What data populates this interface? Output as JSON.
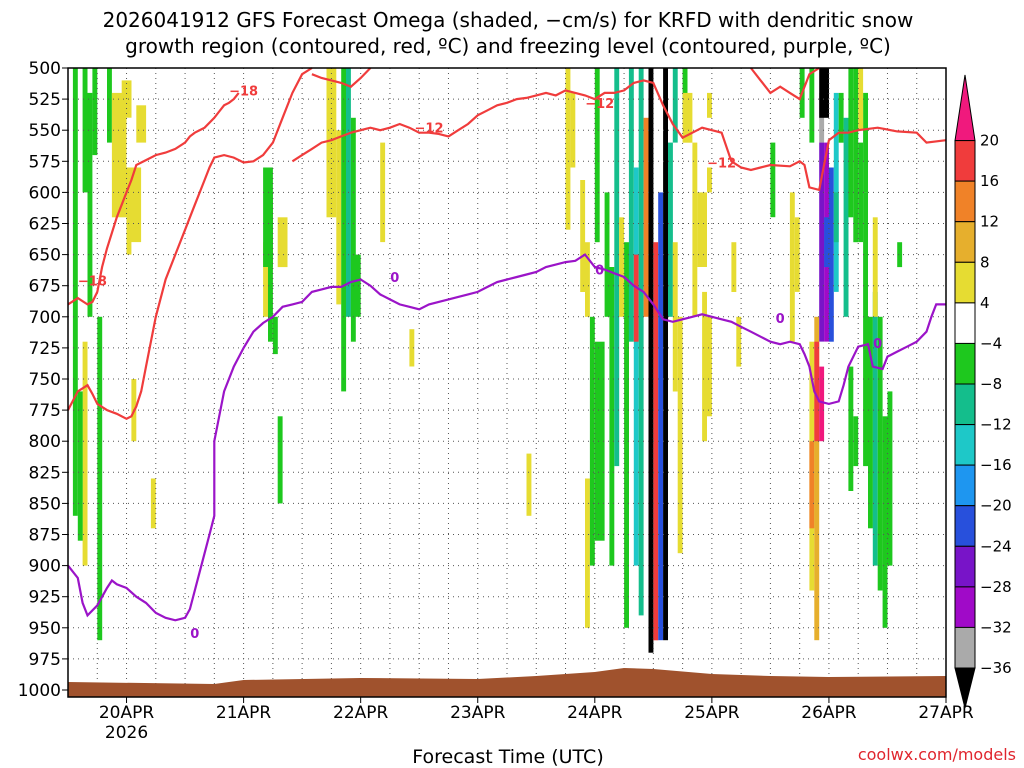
{
  "chart_data": {
    "type": "heatmap",
    "title_line1": "2026041912 GFS Forecast Omega (shaded, −cm/s) for KRFD with dendritic snow",
    "title_line2": "growth region (contoured, red, ºC) and freezing level (contoured, purple, ºC)",
    "xlabel": "Forecast Time (UTC)",
    "credit": "coolwx.com/models",
    "y_ticks": [
      500,
      525,
      550,
      575,
      600,
      625,
      650,
      675,
      700,
      725,
      750,
      775,
      800,
      825,
      850,
      875,
      900,
      925,
      950,
      975,
      1000
    ],
    "ylim": [
      1000,
      500
    ],
    "xlim": [
      0,
      180
    ],
    "x_ticks": [
      {
        "day": 12,
        "label": "20APR",
        "sublabel": "2026"
      },
      {
        "day": 36,
        "label": "21APR",
        "sublabel": ""
      },
      {
        "day": 60,
        "label": "22APR",
        "sublabel": ""
      },
      {
        "day": 84,
        "label": "23APR",
        "sublabel": ""
      },
      {
        "day": 108,
        "label": "24APR",
        "sublabel": ""
      },
      {
        "day": 132,
        "label": "25APR",
        "sublabel": ""
      },
      {
        "day": 156,
        "label": "26APR",
        "sublabel": ""
      },
      {
        "day": 180,
        "label": "27APR",
        "sublabel": ""
      }
    ],
    "colorbar": {
      "levels": [
        20,
        16,
        12,
        8,
        4,
        -4,
        -8,
        -12,
        -16,
        -20,
        -24,
        -28,
        -32,
        -36
      ],
      "colors": [
        "#f0197d",
        "#f03c3c",
        "#f08228",
        "#e6af2d",
        "#e6dc32",
        "#ffffff",
        "#1ec81e",
        "#14be8c",
        "#1ec8c8",
        "#1e96f0",
        "#2850dc",
        "#7814c8",
        "#a00ac8",
        "#aaaaaa",
        "#000000"
      ]
    },
    "contours": [
      {
        "name": "-18",
        "color": "#f03c3c",
        "label_at": [
          [
            5,
            675
          ],
          [
            36,
            522
          ]
        ],
        "points": [
          [
            0,
            690
          ],
          [
            2,
            685
          ],
          [
            4,
            690
          ],
          [
            5,
            688
          ],
          [
            6,
            680
          ],
          [
            7,
            660
          ],
          [
            8,
            645
          ],
          [
            10,
            620
          ],
          [
            12,
            600
          ],
          [
            13,
            590
          ],
          [
            14,
            578
          ],
          [
            16,
            574
          ],
          [
            18,
            570
          ],
          [
            20,
            568
          ],
          [
            22,
            565
          ],
          [
            24,
            560
          ],
          [
            25,
            555
          ],
          [
            26,
            552
          ],
          [
            28,
            548
          ],
          [
            30,
            540
          ],
          [
            31,
            535
          ],
          [
            32,
            530
          ],
          [
            33,
            528
          ],
          [
            34,
            525
          ],
          [
            35,
            520
          ]
        ]
      },
      {
        "name": "-18 lower",
        "color": "#f03c3c",
        "label_at": [],
        "points": [
          [
            0,
            775
          ],
          [
            2,
            760
          ],
          [
            4,
            755
          ],
          [
            5,
            762
          ],
          [
            6,
            770
          ],
          [
            8,
            775
          ],
          [
            10,
            778
          ],
          [
            12,
            782
          ],
          [
            13,
            780
          ],
          [
            14,
            772
          ],
          [
            15,
            760
          ],
          [
            16,
            740
          ],
          [
            18,
            700
          ],
          [
            20,
            670
          ],
          [
            22,
            650
          ],
          [
            24,
            630
          ],
          [
            26,
            610
          ],
          [
            28,
            590
          ],
          [
            29,
            580
          ],
          [
            30,
            572
          ],
          [
            32,
            570
          ],
          [
            34,
            572
          ],
          [
            36,
            576
          ],
          [
            38,
            575
          ],
          [
            40,
            570
          ],
          [
            42,
            560
          ],
          [
            44,
            540
          ],
          [
            46,
            520
          ],
          [
            48,
            505
          ],
          [
            50,
            500
          ]
        ]
      },
      {
        "name": "-12",
        "color": "#f03c3c",
        "label_at": [
          [
            74,
            552
          ],
          [
            109,
            532
          ],
          [
            134,
            580
          ]
        ],
        "points": [
          [
            50,
            505
          ],
          [
            52,
            508
          ],
          [
            54,
            510
          ],
          [
            56,
            512
          ],
          [
            58,
            515
          ],
          [
            60,
            508
          ],
          [
            62,
            500
          ]
        ]
      },
      {
        "name": "-12 b",
        "color": "#f03c3c",
        "label_at": [],
        "points": [
          [
            46,
            575
          ],
          [
            48,
            570
          ],
          [
            50,
            565
          ],
          [
            52,
            560
          ],
          [
            54,
            558
          ],
          [
            56,
            555
          ],
          [
            58,
            552
          ],
          [
            60,
            550
          ],
          [
            62,
            548
          ],
          [
            64,
            550
          ],
          [
            66,
            548
          ],
          [
            68,
            545
          ],
          [
            70,
            548
          ],
          [
            72,
            552
          ],
          [
            74,
            552
          ],
          [
            76,
            553
          ],
          [
            78,
            555
          ],
          [
            80,
            550
          ],
          [
            82,
            545
          ],
          [
            84,
            538
          ],
          [
            86,
            534
          ],
          [
            88,
            530
          ],
          [
            90,
            528
          ],
          [
            92,
            525
          ],
          [
            94,
            524
          ],
          [
            96,
            522
          ],
          [
            98,
            520
          ],
          [
            100,
            522
          ],
          [
            102,
            518
          ],
          [
            104,
            520
          ],
          [
            106,
            522
          ],
          [
            108,
            525
          ],
          [
            110,
            520
          ],
          [
            112,
            520
          ],
          [
            114,
            518
          ],
          [
            116,
            512
          ],
          [
            118,
            510
          ],
          [
            120,
            512
          ],
          [
            122,
            530
          ],
          [
            124,
            545
          ],
          [
            126,
            556
          ],
          [
            128,
            552
          ],
          [
            130,
            548
          ],
          [
            132,
            550
          ],
          [
            134,
            552
          ],
          [
            136,
            575
          ],
          [
            138,
            580
          ],
          [
            140,
            582
          ],
          [
            142,
            580
          ],
          [
            144,
            578
          ],
          [
            148,
            579
          ],
          [
            150,
            575
          ],
          [
            151,
            578
          ],
          [
            152,
            596
          ],
          [
            154,
            598
          ],
          [
            156,
            558
          ],
          [
            158,
            552
          ],
          [
            160,
            552
          ],
          [
            162,
            550
          ],
          [
            166,
            548
          ],
          [
            170,
            551
          ],
          [
            174,
            552
          ],
          [
            176,
            560
          ],
          [
            180,
            558
          ]
        ]
      },
      {
        "name": "-12 top",
        "color": "#f03c3c",
        "label_at": [],
        "points": [
          [
            140,
            500
          ],
          [
            142,
            510
          ],
          [
            144,
            520
          ],
          [
            146,
            515
          ],
          [
            148,
            520
          ],
          [
            150,
            525
          ],
          [
            152,
            505
          ],
          [
            154,
            500
          ]
        ]
      },
      {
        "name": "0",
        "color": "#9b14c8",
        "label_at": [
          [
            67,
            672
          ],
          [
            109,
            666
          ],
          [
            146,
            705
          ],
          [
            166,
            725
          ],
          [
            26,
            958
          ]
        ],
        "points": [
          [
            0,
            900
          ],
          [
            2,
            910
          ],
          [
            3,
            930
          ],
          [
            4,
            940
          ],
          [
            6,
            932
          ],
          [
            8,
            918
          ],
          [
            9,
            912
          ],
          [
            10,
            915
          ],
          [
            12,
            918
          ],
          [
            14,
            925
          ],
          [
            16,
            930
          ],
          [
            18,
            938
          ],
          [
            20,
            942
          ],
          [
            22,
            944
          ],
          [
            24,
            942
          ],
          [
            25,
            935
          ],
          [
            26,
            920
          ],
          [
            27,
            905
          ],
          [
            28,
            890
          ],
          [
            29,
            875
          ],
          [
            30,
            860
          ],
          [
            30,
            840
          ],
          [
            30,
            820
          ],
          [
            30,
            800
          ],
          [
            31,
            780
          ],
          [
            32,
            760
          ],
          [
            34,
            740
          ],
          [
            36,
            725
          ],
          [
            38,
            712
          ],
          [
            40,
            705
          ],
          [
            42,
            700
          ],
          [
            44,
            692
          ],
          [
            46,
            690
          ],
          [
            48,
            688
          ],
          [
            50,
            680
          ],
          [
            52,
            678
          ],
          [
            54,
            676
          ],
          [
            56,
            676
          ],
          [
            58,
            672
          ],
          [
            60,
            670
          ],
          [
            62,
            675
          ],
          [
            64,
            682
          ],
          [
            66,
            686
          ],
          [
            68,
            690
          ],
          [
            70,
            692
          ],
          [
            72,
            694
          ],
          [
            74,
            690
          ],
          [
            76,
            688
          ],
          [
            78,
            686
          ],
          [
            80,
            684
          ],
          [
            82,
            682
          ],
          [
            84,
            680
          ],
          [
            86,
            676
          ],
          [
            88,
            672
          ],
          [
            90,
            670
          ],
          [
            92,
            668
          ],
          [
            94,
            666
          ],
          [
            96,
            664
          ],
          [
            98,
            660
          ],
          [
            100,
            658
          ],
          [
            102,
            656
          ],
          [
            104,
            655
          ],
          [
            106,
            650
          ],
          [
            108,
            660
          ],
          [
            110,
            662
          ],
          [
            112,
            665
          ],
          [
            114,
            668
          ],
          [
            116,
            675
          ],
          [
            118,
            680
          ],
          [
            120,
            690
          ],
          [
            122,
            702
          ],
          [
            124,
            704
          ],
          [
            126,
            702
          ],
          [
            128,
            700
          ],
          [
            130,
            698
          ],
          [
            132,
            700
          ],
          [
            134,
            702
          ],
          [
            136,
            704
          ],
          [
            138,
            708
          ],
          [
            140,
            712
          ],
          [
            142,
            716
          ],
          [
            144,
            720
          ],
          [
            146,
            722
          ],
          [
            148,
            720
          ],
          [
            150,
            722
          ],
          [
            151,
            730
          ],
          [
            152,
            740
          ],
          [
            153,
            760
          ],
          [
            154,
            768
          ],
          [
            156,
            770
          ],
          [
            158,
            768
          ],
          [
            159,
            755
          ],
          [
            160,
            740
          ],
          [
            162,
            724
          ],
          [
            164,
            722
          ],
          [
            165,
            740
          ],
          [
            167,
            742
          ],
          [
            168,
            732
          ],
          [
            170,
            728
          ],
          [
            172,
            724
          ],
          [
            174,
            720
          ],
          [
            176,
            712
          ],
          [
            177,
            700
          ],
          [
            178,
            690
          ],
          [
            180,
            690
          ]
        ]
      }
    ]
  }
}
